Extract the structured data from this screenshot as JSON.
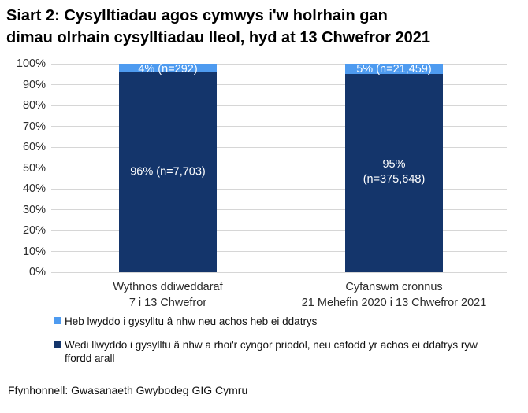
{
  "title": {
    "line1": "Siart 2: Cysylltiadau agos cymwys i'w holrhain gan",
    "line2": "dimau olrhain cysylltiadau lleol, hyd at 13 Chwefror 2021"
  },
  "source": "Ffynhonnell: Gwasanaeth Gwybodeg GIG Cymru",
  "colors": {
    "dark_blue": "#14356B",
    "light_blue": "#4E9BF0",
    "gridline": "#D6D6D6"
  },
  "legend": {
    "items": [
      {
        "label": "Heb lwyddo i gysylltu â nhw neu achos heb ei ddatrys",
        "color": "#4E9BF0"
      },
      {
        "label": "Wedi llwyddo i gysylltu â nhw a rhoi'r cyngor priodol, neu cafodd yr achos ei ddatrys ryw ffordd arall",
        "color": "#14356B"
      }
    ]
  },
  "chart_data": {
    "type": "bar",
    "subtype": "stacked_percentage_column",
    "title": "Siart 2: Cysylltiadau agos cymwys i'w holrhain gan dimau olrhain cysylltiadau lleol, hyd at 13 Chwefror 2021",
    "categories": [
      "Wythnos ddiweddaraf\n7 i 13 Chwefror",
      "Cyfanswm cronnus\n21 Mehefin 2020 i 13 Chwefror 2021"
    ],
    "series": [
      {
        "name": "Wedi llwyddo i gysylltu â nhw a rhoi'r cyngor priodol, neu cafodd yr achos ei ddatrys ryw ffordd arall",
        "color": "#14356B",
        "values": [
          96,
          95
        ],
        "counts": [
          7703,
          375648
        ],
        "data_labels": [
          "96% (n=7,703)",
          "95%\n(n=375,648)"
        ]
      },
      {
        "name": "Heb lwyddo i gysylltu â nhw neu achos heb ei ddatrys",
        "color": "#4E9BF0",
        "values": [
          4,
          5
        ],
        "counts": [
          292,
          21459
        ],
        "data_labels": [
          "4% (n=292)",
          "5% (n=21,459)"
        ]
      }
    ],
    "xlabel": "",
    "ylabel": "",
    "ylim": [
      0,
      100
    ],
    "yticks": [
      "0%",
      "10%",
      "20%",
      "30%",
      "40%",
      "50%",
      "60%",
      "70%",
      "80%",
      "90%",
      "100%"
    ],
    "grid": true,
    "legend_position": "bottom"
  }
}
